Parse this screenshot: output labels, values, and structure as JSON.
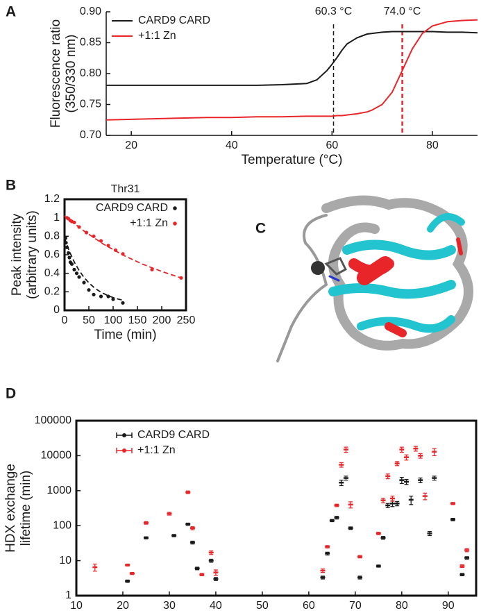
{
  "chart_data": [
    {
      "panel": "A",
      "type": "line",
      "xlabel": "Temperature (°C)",
      "ylabel": [
        "Fluorescence ratio",
        "(350/330 nm)"
      ],
      "x": [
        15,
        20,
        25,
        30,
        35,
        40,
        45,
        50,
        55,
        57,
        59,
        60,
        61,
        62,
        63,
        65,
        67,
        68,
        70,
        72,
        74,
        76,
        78,
        80,
        83,
        86,
        89
      ],
      "series": [
        {
          "name": "CARD9 CARD",
          "color": "#1a1a1a",
          "values": [
            0.781,
            0.781,
            0.781,
            0.781,
            0.781,
            0.781,
            0.781,
            0.782,
            0.784,
            0.79,
            0.805,
            0.815,
            0.826,
            0.838,
            0.848,
            0.858,
            0.864,
            0.865,
            0.867,
            0.868,
            0.868,
            0.868,
            0.868,
            0.868,
            0.867,
            0.867,
            0.866
          ]
        },
        {
          "name": "+1:1 Zn",
          "color": "#e8262a",
          "values": [
            0.725,
            0.726,
            0.727,
            0.728,
            0.729,
            0.729,
            0.73,
            0.73,
            0.731,
            0.731,
            0.731,
            0.731,
            0.732,
            0.732,
            0.733,
            0.735,
            0.738,
            0.741,
            0.75,
            0.77,
            0.805,
            0.84,
            0.865,
            0.877,
            0.884,
            0.886,
            0.887
          ]
        }
      ],
      "vlines": [
        {
          "value": 60.3,
          "label": "60.3 °C",
          "color": "#1a1a1a"
        },
        {
          "value": 74.0,
          "label": "74.0 °C",
          "color": "#e8262a"
        }
      ],
      "xlim": [
        15,
        89
      ],
      "xticks": [
        20,
        40,
        60,
        80
      ],
      "ylim": [
        0.7,
        0.9
      ],
      "yticks": [
        {
          "value": 0.7,
          "label": "0.70"
        },
        0.75,
        {
          "value": 0.8,
          "label": "0.80"
        },
        0.85,
        {
          "value": 0.9,
          "label": "0.90"
        }
      ],
      "legend": "upper left",
      "frame": false,
      "log_y": false
    },
    {
      "panel": "B",
      "type": "scatter",
      "title": "Thr31",
      "xlabel": "Time (min)",
      "ylabel": [
        "Peak intensity",
        "(arbitrary units)"
      ],
      "series": [
        {
          "name": "CARD9 CARD",
          "color": "#1a1a1a",
          "x": [
            2,
            3,
            5,
            8,
            10,
            12,
            15,
            20,
            25,
            30,
            40,
            50,
            60,
            75,
            90,
            100,
            120
          ],
          "values": [
            0.78,
            0.73,
            0.68,
            0.62,
            0.57,
            0.52,
            0.5,
            0.44,
            0.4,
            0.36,
            0.3,
            0.22,
            0.17,
            0.15,
            0.15,
            0.12,
            0.08
          ],
          "fit": {
            "x": [
              0,
              10,
              20,
              30,
              40,
              50,
              60,
              70,
              80,
              90,
              100,
              110,
              120
            ],
            "values": [
              0.78,
              0.636,
              0.522,
              0.43,
              0.356,
              0.297,
              0.25,
              0.212,
              0.182,
              0.157,
              0.138,
              0.122,
              0.11
            ]
          }
        },
        {
          "name": "+1:1 Zn",
          "color": "#e8262a",
          "x": [
            5,
            8,
            12,
            15,
            20,
            30,
            45,
            60,
            75,
            90,
            105,
            120,
            180,
            240
          ],
          "values": [
            1,
            0.99,
            0.97,
            0.96,
            0.95,
            0.9,
            0.84,
            0.8,
            0.75,
            0.7,
            0.65,
            0.61,
            0.44,
            0.35
          ],
          "fit": {
            "x": [
              0,
              40,
              80,
              120,
              160,
              200,
              240
            ],
            "values": [
              1.02,
              0.857,
              0.715,
              0.598,
              0.5,
              0.42,
              0.35
            ]
          }
        }
      ],
      "xlim": [
        0,
        250
      ],
      "xticks": [
        0,
        50,
        100,
        150,
        200,
        250
      ],
      "ylim": [
        0,
        1.2
      ],
      "yticks": [
        0,
        0.2,
        0.4,
        0.6,
        0.8,
        1,
        1.2
      ],
      "legend": "upper right",
      "frame": true,
      "log_y": false
    },
    {
      "panel": "D",
      "type": "scatter",
      "xlabel": "Residue Number",
      "ylabel": [
        "HDX exchange",
        "lifetime (min)"
      ],
      "series": [
        {
          "name": "CARD9 CARD",
          "color": "#1a1a1a",
          "x": [
            21,
            25,
            31,
            34,
            35,
            36,
            39,
            40,
            63,
            64,
            65,
            66,
            67,
            68,
            69,
            71,
            75,
            76,
            77,
            78,
            79,
            80,
            81,
            82,
            84,
            86,
            87,
            91,
            93,
            94
          ],
          "values": [
            2.6,
            45,
            52,
            110,
            33,
            6,
            10,
            3,
            3.3,
            16,
            140,
            170,
            1700,
            2300,
            85,
            3.3,
            7,
            45,
            380,
            430,
            430,
            2000,
            1800,
            550,
            2000,
            60,
            2300,
            150,
            4,
            12
          ],
          "errors": [
            0.2,
            3,
            4,
            8,
            3,
            0.5,
            1,
            0.3,
            0.3,
            1.5,
            10,
            15,
            300,
            300,
            7,
            0.3,
            0.5,
            4,
            50,
            80,
            60,
            400,
            300,
            150,
            300,
            8,
            300,
            12,
            0.3,
            1
          ]
        },
        {
          "name": "+1:1 Zn",
          "color": "#e8262a",
          "x": [
            14,
            21,
            22,
            25,
            30,
            34,
            35,
            37,
            39,
            40,
            63,
            64,
            66,
            67,
            68,
            69,
            71,
            75,
            76,
            77,
            78,
            79,
            80,
            81,
            83,
            84,
            85,
            87,
            91,
            93,
            94
          ],
          "values": [
            6.5,
            7.5,
            4.3,
            120,
            220,
            900,
            85,
            4,
            17,
            4.6,
            5.2,
            25,
            380,
            5500,
            15000,
            400,
            13,
            60,
            530,
            2600,
            600,
            6000,
            15000,
            9000,
            16000,
            10000,
            700,
            13000,
            430,
            7,
            20
          ],
          "errors": [
            1.5,
            0.5,
            0.3,
            10,
            20,
            80,
            8,
            0.3,
            2,
            0.8,
            0.6,
            2,
            30,
            800,
            2500,
            80,
            1,
            5,
            80,
            400,
            100,
            800,
            2500,
            1500,
            2500,
            1500,
            150,
            3000,
            30,
            0.6,
            2
          ]
        }
      ],
      "xlim": [
        10,
        96
      ],
      "xticks": [
        10,
        20,
        30,
        40,
        50,
        60,
        70,
        80,
        90
      ],
      "ylim": [
        1,
        100000
      ],
      "yticks": [
        1,
        10,
        100,
        1000,
        10000,
        100000
      ],
      "legend": "upper left",
      "frame": true,
      "log_y": true
    }
  ],
  "image_panel": {
    "label": "C"
  }
}
